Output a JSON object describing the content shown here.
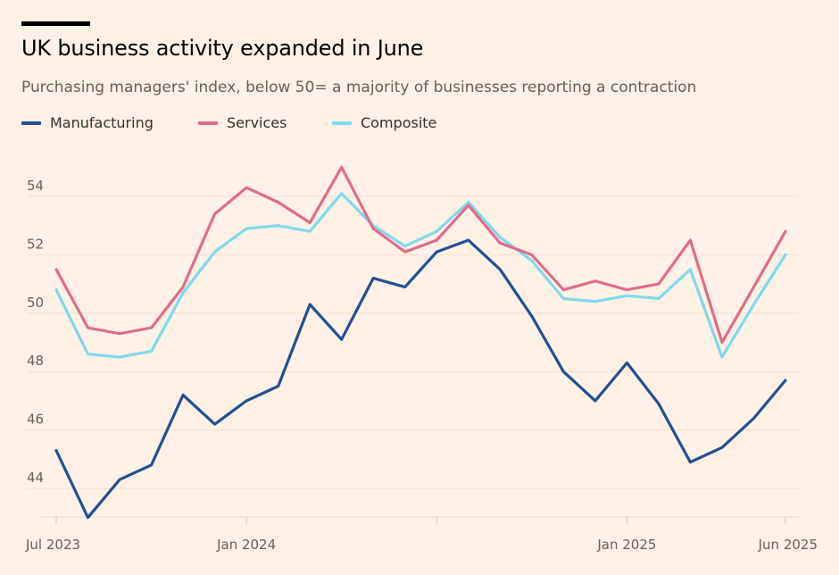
{
  "title": "UK business activity expanded in June",
  "subtitle": "Purchasing managers' index, below 50= a majority of businesses reporting a contraction",
  "colors": {
    "background": "#FFF1E5",
    "manufacturing": "#1F5192",
    "services": "#E16B8C",
    "composite": "#7FD8EC"
  },
  "chart_data": {
    "type": "line",
    "title": "UK business activity expanded in June",
    "subtitle": "Purchasing managers' index, below 50= a majority of businesses reporting a contraction",
    "x": [
      "2023-07",
      "2023-08",
      "2023-09",
      "2023-10",
      "2023-11",
      "2023-12",
      "2024-01",
      "2024-02",
      "2024-03",
      "2024-04",
      "2024-05",
      "2024-06",
      "2024-07",
      "2024-08",
      "2024-09",
      "2024-10",
      "2024-11",
      "2024-12",
      "2025-01",
      "2025-02",
      "2025-03",
      "2025-04",
      "2025-05",
      "2025-06"
    ],
    "x_tick_labels": [
      {
        "x": "2023-07",
        "label": "Jul 2023"
      },
      {
        "x": "2024-01",
        "label": "Jan 2024"
      },
      {
        "x": "2025-01",
        "label": "Jan 2025"
      },
      {
        "x": "2025-06",
        "label": "Jun 2025"
      }
    ],
    "y_ticks": [
      "44",
      "46",
      "48",
      "50",
      "52",
      "54"
    ],
    "ylim": [
      43,
      56
    ],
    "legend_position": "top-left",
    "grid": true,
    "series": [
      {
        "name": "Manufacturing",
        "color": "#1F5192",
        "values": [
          45.3,
          43.0,
          44.3,
          44.8,
          47.2,
          46.2,
          47.0,
          47.5,
          50.3,
          49.1,
          51.2,
          50.9,
          52.1,
          52.5,
          51.5,
          49.9,
          48.0,
          47.0,
          48.3,
          46.9,
          44.9,
          45.4,
          46.4,
          47.7
        ]
      },
      {
        "name": "Services",
        "color": "#E16B8C",
        "values": [
          51.5,
          49.5,
          49.3,
          49.5,
          50.9,
          53.4,
          54.3,
          53.8,
          53.1,
          55.0,
          52.9,
          52.1,
          52.5,
          53.7,
          52.4,
          52.0,
          50.8,
          51.1,
          50.8,
          51.0,
          52.5,
          49.0,
          50.9,
          52.8
        ]
      },
      {
        "name": "Composite",
        "color": "#7FD8EC",
        "values": [
          50.8,
          48.6,
          48.5,
          48.7,
          50.7,
          52.1,
          52.9,
          53.0,
          52.8,
          54.1,
          53.0,
          52.3,
          52.8,
          53.8,
          52.6,
          51.8,
          50.5,
          50.4,
          50.6,
          50.5,
          51.5,
          48.5,
          50.3,
          52.0
        ]
      }
    ]
  }
}
